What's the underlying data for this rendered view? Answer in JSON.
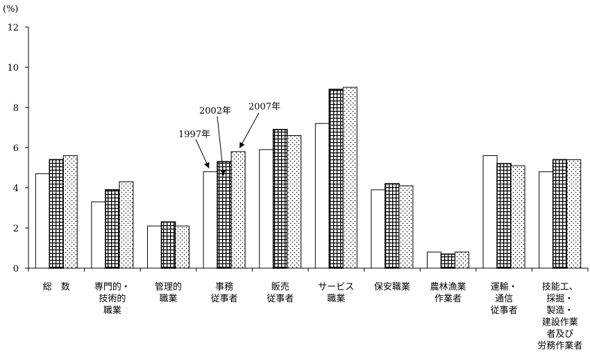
{
  "chart_data": {
    "type": "bar",
    "ylabel": "(%)",
    "ylim": [
      0,
      12
    ],
    "yticks": [
      "0",
      "2",
      "4",
      "6",
      "8",
      "10",
      "12"
    ],
    "categories": [
      [
        "総　数"
      ],
      [
        "専門的・",
        "技術的",
        "職業"
      ],
      [
        "管理的",
        "職業"
      ],
      [
        "事務",
        "従事者"
      ],
      [
        "販売",
        "従事者"
      ],
      [
        "サービス",
        "職業"
      ],
      [
        "保安職業"
      ],
      [
        "農林漁業",
        "作業者"
      ],
      [
        "運輸・",
        "通信",
        "従事者"
      ],
      [
        "技能工、",
        "採掘・",
        "製造・",
        "建設作業",
        "者及び",
        "労務作業者"
      ]
    ],
    "series": [
      {
        "name": "1997年",
        "pattern": "white",
        "values": [
          4.7,
          3.3,
          2.1,
          4.8,
          5.9,
          7.2,
          3.9,
          0.8,
          5.6,
          4.8
        ]
      },
      {
        "name": "2002年",
        "pattern": "grid",
        "values": [
          5.4,
          3.9,
          2.3,
          5.3,
          6.9,
          8.9,
          4.2,
          0.7,
          5.2,
          5.4
        ]
      },
      {
        "name": "2007年",
        "pattern": "dots",
        "values": [
          5.6,
          4.3,
          2.1,
          5.8,
          6.6,
          9.0,
          4.1,
          0.8,
          5.1,
          5.4
        ]
      }
    ],
    "annotations": [
      {
        "text": "1997年",
        "category": 3,
        "series": 0
      },
      {
        "text": "2002年",
        "category": 3,
        "series": 1
      },
      {
        "text": "2007年",
        "category": 3,
        "series": 2
      }
    ],
    "grid": false,
    "legend": "none"
  }
}
